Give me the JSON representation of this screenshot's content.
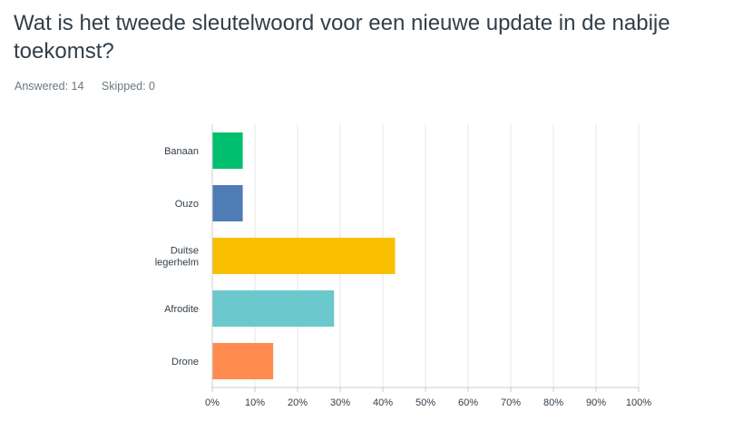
{
  "question": {
    "title": "Wat is het tweede sleutelwoord voor een nieuwe update in de nabije toekomst?",
    "answered": "Answered: 14",
    "skipped": "Skipped: 0"
  },
  "chart_data": {
    "type": "bar",
    "orientation": "horizontal",
    "categories": [
      [
        "Banaan"
      ],
      [
        "Ouzo"
      ],
      [
        "Duitse",
        "legerhelm"
      ],
      [
        "Afrodite"
      ],
      [
        "Drone"
      ]
    ],
    "values": [
      7.14,
      7.14,
      42.86,
      28.57,
      14.29
    ],
    "colors": [
      "#00bf6f",
      "#507cb6",
      "#f9be00",
      "#6bc8cd",
      "#ff8b4f"
    ],
    "xlim": [
      0,
      100
    ],
    "xticks": [
      "0%",
      "10%",
      "20%",
      "30%",
      "40%",
      "50%",
      "60%",
      "70%",
      "80%",
      "90%",
      "100%"
    ],
    "grid": true,
    "title": "",
    "xlabel": "",
    "ylabel": ""
  }
}
